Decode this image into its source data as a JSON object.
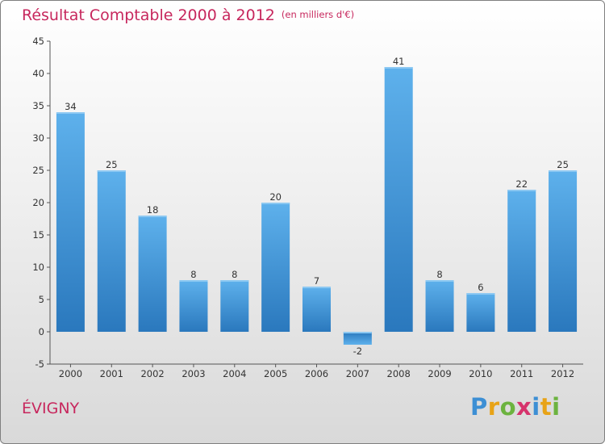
{
  "header": {
    "title": "Résultat Comptable 2000 à 2012",
    "unit": "(en milliers d'€)"
  },
  "commune": "ÉVIGNY",
  "brand": {
    "letters": [
      "P",
      "r",
      "o",
      "x",
      "i",
      "t",
      "i"
    ],
    "colors": [
      "#3d8fd4",
      "#e8a317",
      "#6cb33f",
      "#d6336c",
      "#3d8fd4",
      "#e8a317",
      "#6cb33f"
    ]
  },
  "chart_data": {
    "type": "bar",
    "title": "Résultat Comptable 2000 à 2012",
    "subtitle": "(en milliers d'€)",
    "xlabel": "",
    "ylabel": "",
    "categories": [
      "2000",
      "2001",
      "2002",
      "2003",
      "2004",
      "2005",
      "2006",
      "2007",
      "2008",
      "2009",
      "2010",
      "2011",
      "2012"
    ],
    "values": [
      34,
      25,
      18,
      8,
      8,
      20,
      7,
      -2,
      41,
      8,
      6,
      22,
      25
    ],
    "ylim": [
      -5,
      45
    ],
    "yticks": [
      -5,
      0,
      5,
      10,
      15,
      20,
      25,
      30,
      35,
      40,
      45
    ],
    "grid": false,
    "bar_color": "#4d9fe0"
  }
}
